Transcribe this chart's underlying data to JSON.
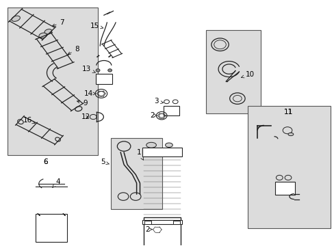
{
  "bg_color": "#ffffff",
  "part_bg": "#dcdcdc",
  "line_color": "#222222",
  "text_color": "#000000",
  "fig_width": 4.89,
  "fig_height": 3.6,
  "dpi": 100,
  "boxes": {
    "6": [
      0.022,
      0.03,
      0.27,
      0.6
    ],
    "5": [
      0.33,
      0.56,
      0.155,
      0.29
    ],
    "10": [
      0.615,
      0.12,
      0.165,
      0.34
    ],
    "11": [
      0.74,
      0.43,
      0.25,
      0.5
    ]
  },
  "box_labels": {
    "6": [
      0.135,
      0.66
    ],
    "11": [
      0.862,
      0.455
    ]
  }
}
